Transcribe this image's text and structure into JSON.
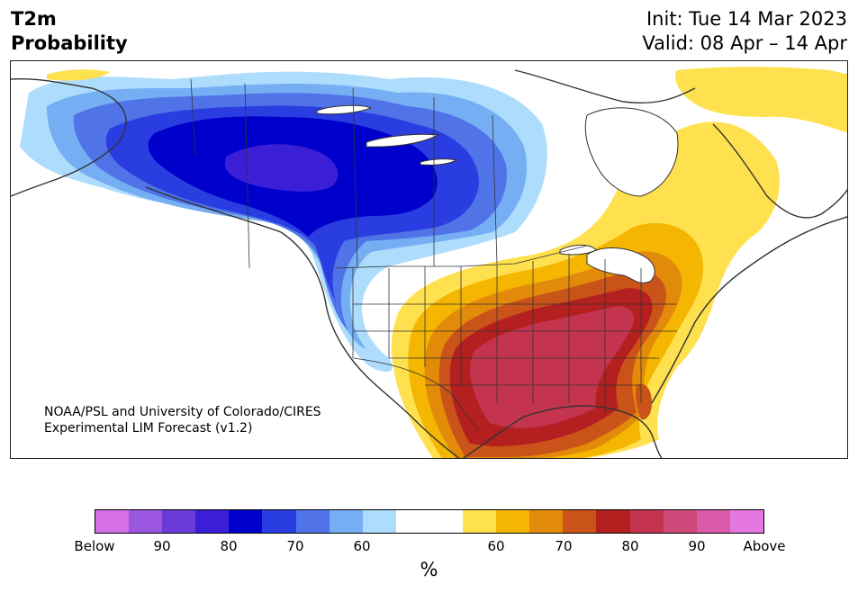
{
  "title": {
    "line1": "T2m",
    "line2": "Probability",
    "init": "Init: Tue 14 Mar 2023",
    "valid": "Valid: 08 Apr – 14 Apr"
  },
  "credit": {
    "line1": "NOAA/PSL and University of Colorado/CIRES",
    "line2": "Experimental LIM Forecast (v1.2)"
  },
  "colorbar": {
    "colors": [
      "#d56fe8",
      "#9c57e0",
      "#6a3bd8",
      "#3a1fd6",
      "#0000cc",
      "#2a3de0",
      "#5074e8",
      "#76aef4",
      "#addcfc",
      "#ffffff",
      "#ffffff",
      "#ffe04e",
      "#f4b600",
      "#e28a0a",
      "#c95318",
      "#b3201f",
      "#c4344e",
      "#cf4a7a",
      "#d85aa8",
      "#e577e0"
    ],
    "tick_labels": [
      "Below",
      "90",
      "80",
      "70",
      "60",
      "60",
      "70",
      "80",
      "90",
      "Above"
    ],
    "unit": "%"
  },
  "map": {
    "colors": {
      "ocean": "#ffffff",
      "coast": "#333333",
      "border": "#333333"
    }
  }
}
